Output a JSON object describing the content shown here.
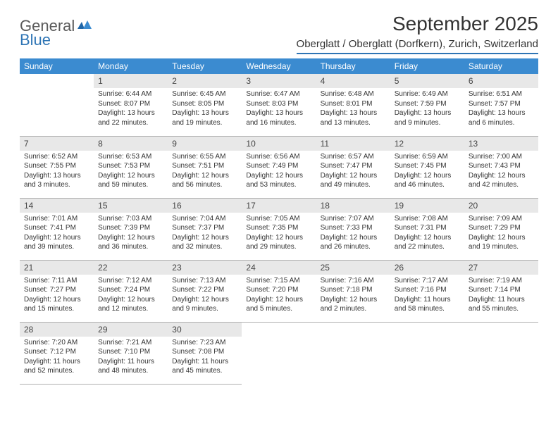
{
  "logo": {
    "general": "General",
    "blue": "Blue"
  },
  "title": "September 2025",
  "location": "Oberglatt / Oberglatt (Dorfkern), Zurich, Switzerland",
  "colors": {
    "header_bg": "#3b8bd0",
    "header_fg": "#ffffff",
    "daynum_bg": "#e8e8e8",
    "border": "#b0b0b0",
    "accent": "#2f75b5",
    "text": "#333333"
  },
  "weekdays": [
    "Sunday",
    "Monday",
    "Tuesday",
    "Wednesday",
    "Thursday",
    "Friday",
    "Saturday"
  ],
  "weeks": [
    [
      null,
      {
        "n": "1",
        "sr": "6:44 AM",
        "ss": "8:07 PM",
        "dl": "13 hours and 22 minutes."
      },
      {
        "n": "2",
        "sr": "6:45 AM",
        "ss": "8:05 PM",
        "dl": "13 hours and 19 minutes."
      },
      {
        "n": "3",
        "sr": "6:47 AM",
        "ss": "8:03 PM",
        "dl": "13 hours and 16 minutes."
      },
      {
        "n": "4",
        "sr": "6:48 AM",
        "ss": "8:01 PM",
        "dl": "13 hours and 13 minutes."
      },
      {
        "n": "5",
        "sr": "6:49 AM",
        "ss": "7:59 PM",
        "dl": "13 hours and 9 minutes."
      },
      {
        "n": "6",
        "sr": "6:51 AM",
        "ss": "7:57 PM",
        "dl": "13 hours and 6 minutes."
      }
    ],
    [
      {
        "n": "7",
        "sr": "6:52 AM",
        "ss": "7:55 PM",
        "dl": "13 hours and 3 minutes."
      },
      {
        "n": "8",
        "sr": "6:53 AM",
        "ss": "7:53 PM",
        "dl": "12 hours and 59 minutes."
      },
      {
        "n": "9",
        "sr": "6:55 AM",
        "ss": "7:51 PM",
        "dl": "12 hours and 56 minutes."
      },
      {
        "n": "10",
        "sr": "6:56 AM",
        "ss": "7:49 PM",
        "dl": "12 hours and 53 minutes."
      },
      {
        "n": "11",
        "sr": "6:57 AM",
        "ss": "7:47 PM",
        "dl": "12 hours and 49 minutes."
      },
      {
        "n": "12",
        "sr": "6:59 AM",
        "ss": "7:45 PM",
        "dl": "12 hours and 46 minutes."
      },
      {
        "n": "13",
        "sr": "7:00 AM",
        "ss": "7:43 PM",
        "dl": "12 hours and 42 minutes."
      }
    ],
    [
      {
        "n": "14",
        "sr": "7:01 AM",
        "ss": "7:41 PM",
        "dl": "12 hours and 39 minutes."
      },
      {
        "n": "15",
        "sr": "7:03 AM",
        "ss": "7:39 PM",
        "dl": "12 hours and 36 minutes."
      },
      {
        "n": "16",
        "sr": "7:04 AM",
        "ss": "7:37 PM",
        "dl": "12 hours and 32 minutes."
      },
      {
        "n": "17",
        "sr": "7:05 AM",
        "ss": "7:35 PM",
        "dl": "12 hours and 29 minutes."
      },
      {
        "n": "18",
        "sr": "7:07 AM",
        "ss": "7:33 PM",
        "dl": "12 hours and 26 minutes."
      },
      {
        "n": "19",
        "sr": "7:08 AM",
        "ss": "7:31 PM",
        "dl": "12 hours and 22 minutes."
      },
      {
        "n": "20",
        "sr": "7:09 AM",
        "ss": "7:29 PM",
        "dl": "12 hours and 19 minutes."
      }
    ],
    [
      {
        "n": "21",
        "sr": "7:11 AM",
        "ss": "7:27 PM",
        "dl": "12 hours and 15 minutes."
      },
      {
        "n": "22",
        "sr": "7:12 AM",
        "ss": "7:24 PM",
        "dl": "12 hours and 12 minutes."
      },
      {
        "n": "23",
        "sr": "7:13 AM",
        "ss": "7:22 PM",
        "dl": "12 hours and 9 minutes."
      },
      {
        "n": "24",
        "sr": "7:15 AM",
        "ss": "7:20 PM",
        "dl": "12 hours and 5 minutes."
      },
      {
        "n": "25",
        "sr": "7:16 AM",
        "ss": "7:18 PM",
        "dl": "12 hours and 2 minutes."
      },
      {
        "n": "26",
        "sr": "7:17 AM",
        "ss": "7:16 PM",
        "dl": "11 hours and 58 minutes."
      },
      {
        "n": "27",
        "sr": "7:19 AM",
        "ss": "7:14 PM",
        "dl": "11 hours and 55 minutes."
      }
    ],
    [
      {
        "n": "28",
        "sr": "7:20 AM",
        "ss": "7:12 PM",
        "dl": "11 hours and 52 minutes."
      },
      {
        "n": "29",
        "sr": "7:21 AM",
        "ss": "7:10 PM",
        "dl": "11 hours and 48 minutes."
      },
      {
        "n": "30",
        "sr": "7:23 AM",
        "ss": "7:08 PM",
        "dl": "11 hours and 45 minutes."
      },
      null,
      null,
      null,
      null
    ]
  ],
  "labels": {
    "sunrise": "Sunrise:",
    "sunset": "Sunset:",
    "daylight": "Daylight:"
  }
}
